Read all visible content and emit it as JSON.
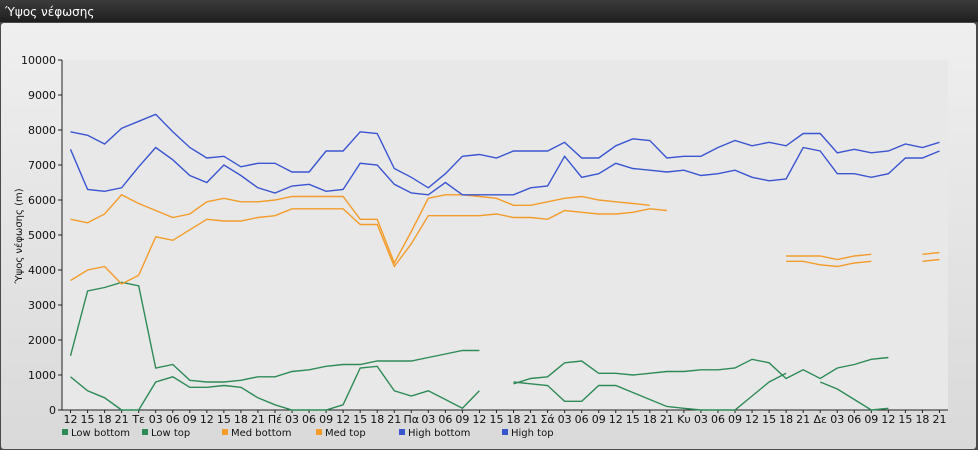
{
  "window": {
    "title": "Ύψος νέφωσης"
  },
  "chart_data": {
    "type": "line",
    "title": "",
    "ylabel": "Ύψος νέφωσης (m)",
    "xlabel": "",
    "ylim": [
      0,
      10000
    ],
    "yticks": [
      0,
      1000,
      2000,
      3000,
      4000,
      5000,
      6000,
      7000,
      8000,
      9000,
      10000
    ],
    "grid": false,
    "legend_placement": "bottom-left",
    "x": [
      "12",
      "15",
      "18",
      "21",
      "Τε",
      "03",
      "06",
      "09",
      "12",
      "15",
      "18",
      "21",
      "Πέ",
      "03",
      "06",
      "09",
      "12",
      "15",
      "18",
      "21",
      "Πα",
      "03",
      "06",
      "09",
      "12",
      "15",
      "18",
      "21",
      "Σά",
      "03",
      "06",
      "09",
      "12",
      "15",
      "18",
      "21",
      "Κυ",
      "03",
      "06",
      "09",
      "12",
      "15",
      "18",
      "21",
      "Δε",
      "03",
      "06",
      "09",
      "12",
      "15",
      "18",
      "21"
    ],
    "series": [
      {
        "name": "Low bottom",
        "color": "#2e8b57",
        "values": [
          950,
          550,
          350,
          0,
          0,
          800,
          950,
          650,
          650,
          700,
          650,
          350,
          150,
          0,
          0,
          0,
          150,
          1200,
          1250,
          550,
          400,
          550,
          300,
          50,
          550,
          null,
          800,
          750,
          700,
          250,
          250,
          700,
          700,
          500,
          300,
          100,
          50,
          0,
          0,
          0,
          400,
          800,
          1050,
          null,
          800,
          600,
          300,
          0,
          50,
          null,
          null,
          null
        ]
      },
      {
        "name": "Low top",
        "color": "#2e8b57",
        "values": [
          1550,
          3400,
          3500,
          3650,
          3550,
          1200,
          1300,
          850,
          800,
          800,
          850,
          950,
          950,
          1100,
          1150,
          1250,
          1300,
          1300,
          1400,
          1400,
          1400,
          1500,
          1600,
          1700,
          1700,
          null,
          750,
          900,
          950,
          1350,
          1400,
          1050,
          1050,
          1000,
          1050,
          1100,
          1100,
          1150,
          1150,
          1200,
          1450,
          1350,
          900,
          1150,
          900,
          1200,
          1300,
          1450,
          1500,
          null,
          null,
          null
        ]
      },
      {
        "name": "Med bottom",
        "color": "#f39c2b",
        "values": [
          3700,
          4000,
          4100,
          3600,
          3850,
          4950,
          4850,
          5150,
          5450,
          5400,
          5400,
          5500,
          5550,
          5750,
          5750,
          5750,
          5750,
          5300,
          5300,
          4100,
          4750,
          5550,
          5550,
          5550,
          5550,
          5600,
          5500,
          5500,
          5450,
          5700,
          5650,
          5600,
          5600,
          5650,
          5750,
          5700,
          null,
          null,
          null,
          null,
          null,
          null,
          4250,
          4250,
          4150,
          4100,
          4200,
          4250,
          null,
          null,
          4250,
          4300
        ]
      },
      {
        "name": "Med top",
        "color": "#f39c2b",
        "values": [
          5450,
          5350,
          5600,
          6150,
          5900,
          5700,
          5500,
          5600,
          5950,
          6050,
          5950,
          5950,
          6000,
          6100,
          6100,
          6100,
          6100,
          5450,
          5450,
          4200,
          5100,
          6050,
          6150,
          6150,
          6100,
          6050,
          5850,
          5850,
          5950,
          6050,
          6100,
          6000,
          5950,
          5900,
          5850,
          null,
          null,
          null,
          null,
          null,
          null,
          null,
          4400,
          4400,
          4400,
          4300,
          4400,
          4450,
          null,
          null,
          4450,
          4500
        ]
      },
      {
        "name": "High bottom",
        "color": "#3a55d0",
        "values": [
          7450,
          6300,
          6250,
          6350,
          6950,
          7500,
          7150,
          6700,
          6500,
          7000,
          6700,
          6350,
          6200,
          6400,
          6450,
          6250,
          6300,
          7050,
          7000,
          6450,
          6200,
          6150,
          6500,
          6150,
          6150,
          6150,
          6150,
          6350,
          6400,
          7250,
          6650,
          6750,
          7050,
          6900,
          6850,
          6800,
          6850,
          6700,
          6750,
          6850,
          6650,
          6550,
          6600,
          7500,
          7400,
          6750,
          6750,
          6650,
          6750,
          7200,
          7200,
          7400
        ]
      },
      {
        "name": "High top",
        "color": "#3a55d0",
        "values": [
          7950,
          7850,
          7600,
          8050,
          8250,
          8450,
          7950,
          7500,
          7200,
          7250,
          6950,
          7050,
          7050,
          6800,
          6800,
          7400,
          7400,
          7950,
          7900,
          6900,
          6650,
          6350,
          6750,
          7250,
          7300,
          7200,
          7400,
          7400,
          7400,
          7650,
          7200,
          7200,
          7550,
          7750,
          7700,
          7200,
          7250,
          7250,
          7500,
          7700,
          7550,
          7650,
          7550,
          7900,
          7900,
          7350,
          7450,
          7350,
          7400,
          7600,
          7500,
          7650
        ]
      }
    ]
  }
}
